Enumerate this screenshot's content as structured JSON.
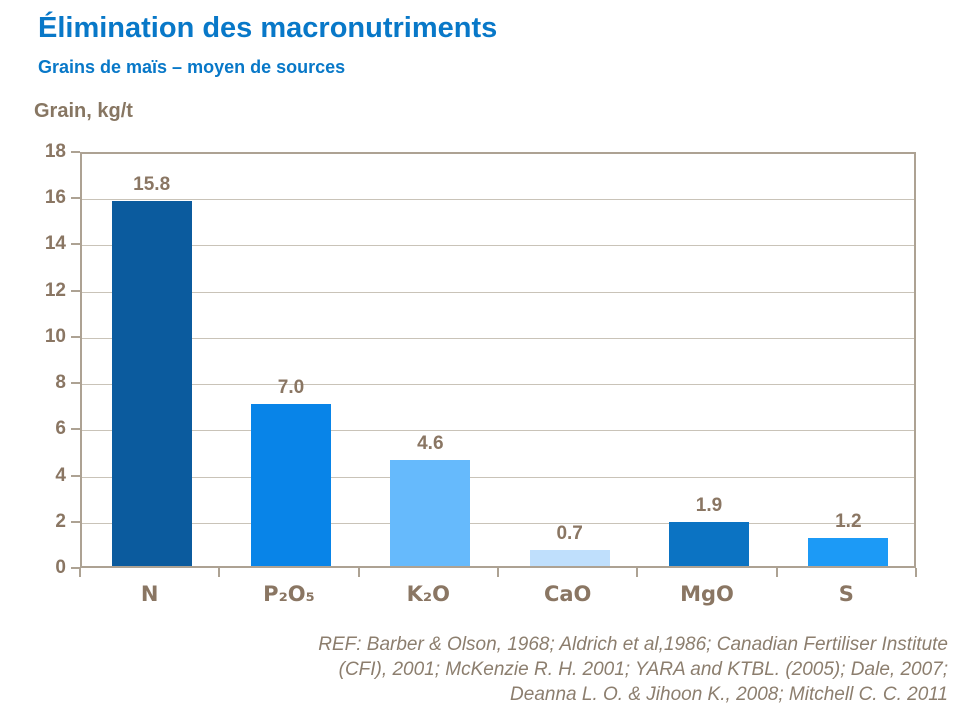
{
  "header": {
    "title": "Élimination des macronutriments",
    "subtitle": "Grains de maïs – moyen de sources"
  },
  "chart_data": {
    "type": "bar",
    "title": "Élimination des macronutriments",
    "subtitle": "Grains de maïs – moyen de sources",
    "ylabel": "Grain, kg/t",
    "xlabel": "",
    "categories": [
      "N",
      "P₂O₅",
      "K₂O",
      "CaO",
      "MgO",
      "S"
    ],
    "values": [
      15.8,
      7.0,
      4.6,
      0.7,
      1.9,
      1.2
    ],
    "value_labels": [
      "15.8",
      "7.0",
      "4.6",
      "0.7",
      "1.9",
      "1.2"
    ],
    "bar_colors": [
      "#0B5B9E",
      "#0884E8",
      "#66BAFC",
      "#BFDFFC",
      "#0B73C3",
      "#1C9AF6"
    ],
    "ylim": [
      0,
      18
    ],
    "ytick_step": 2,
    "grid": true,
    "legend": false
  },
  "footnote": {
    "lines": [
      "REF: Barber & Olson, 1968; Aldrich et al,1986; Canadian Fertiliser Institute",
      "(CFI), 2001; McKenzie R. H. 2001; YARA and KTBL. (2005); Dale, 2007;",
      "Deanna L. O. & Jihoon K.,  2008; Mitchell C. C. 2011"
    ]
  },
  "colors": {
    "title_blue": "#0878C8",
    "axis_text": "#8A7663",
    "frame": "#ADA293",
    "gridline": "#C9C3B8",
    "footnote_text": "#8C7E6E"
  }
}
